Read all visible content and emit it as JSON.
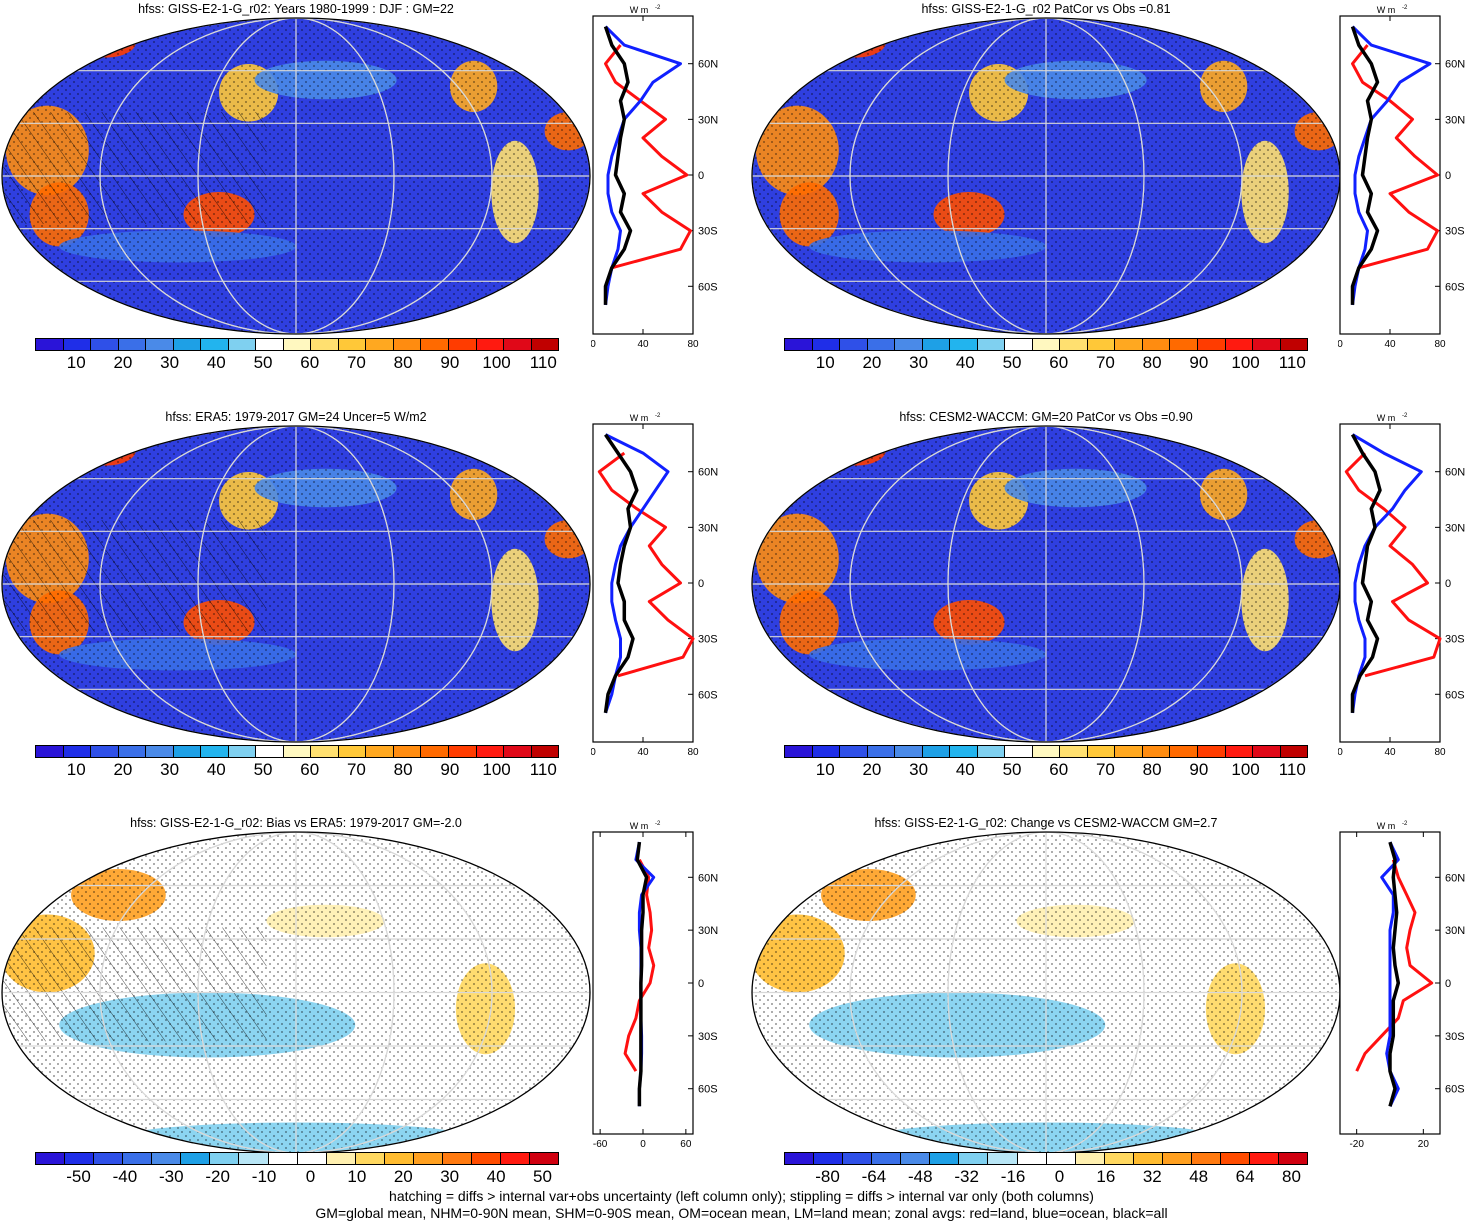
{
  "colorbars": {
    "abs": {
      "colors": [
        "#2a14d8",
        "#1f2ee8",
        "#2f50e8",
        "#3a6fe8",
        "#4a8ae8",
        "#1ea0e6",
        "#22b4ee",
        "#7fd0f0",
        "#ffffff",
        "#fff8c0",
        "#ffe070",
        "#ffc838",
        "#ffa820",
        "#ff8c10",
        "#ff6a00",
        "#ff3c00",
        "#ff1a10",
        "#e00818",
        "#c00000"
      ],
      "labels": [
        "10",
        "20",
        "30",
        "40",
        "50",
        "60",
        "70",
        "80",
        "90",
        "100",
        "110"
      ]
    },
    "bias": {
      "colors": [
        "#2a14d8",
        "#1f2ee8",
        "#2f50e8",
        "#3a6fe8",
        "#4a8ae8",
        "#1ea0e6",
        "#7fd0f0",
        "#b8e6f6",
        "#ffffff",
        "#ffffff",
        "#fff0b0",
        "#ffd860",
        "#ffbc30",
        "#ffa020",
        "#ff7a10",
        "#ff4c00",
        "#ff1a10",
        "#d00010"
      ],
      "labels": [
        "-50",
        "-40",
        "-30",
        "-20",
        "-10",
        "0",
        "10",
        "20",
        "30",
        "40",
        "50"
      ]
    },
    "change": {
      "colors": [
        "#2a14d8",
        "#1f2ee8",
        "#2f50e8",
        "#3a6fe8",
        "#4a8ae8",
        "#1ea0e6",
        "#7fd0f0",
        "#b8e6f6",
        "#ffffff",
        "#ffffff",
        "#fff0b0",
        "#ffd860",
        "#ffbc30",
        "#ffa020",
        "#ff7a10",
        "#ff4c00",
        "#ff1a10",
        "#d00010"
      ],
      "labels": [
        "-80",
        "-64",
        "-48",
        "-32",
        "-16",
        "0",
        "16",
        "32",
        "48",
        "64",
        "80"
      ]
    }
  },
  "chart_data": [
    {
      "type": "heatmap",
      "title": "hfss: GISS-E2-1-G_r02: Years 1980-1999 : DJF : GM=22",
      "colorbar": "abs",
      "zonal": {
        "unit": "W m",
        "unit_sup": "-2",
        "xticks": [
          "0",
          "40",
          "80"
        ],
        "xlim": [
          0,
          80
        ],
        "ylabels": [
          "60N",
          "30N",
          "0",
          "30S",
          "60S"
        ],
        "lat": [
          80,
          70,
          60,
          50,
          40,
          30,
          20,
          10,
          0,
          -10,
          -20,
          -30,
          -40,
          -50,
          -60,
          -70
        ],
        "land": [
          null,
          22,
          10,
          18,
          38,
          58,
          40,
          55,
          75,
          40,
          55,
          78,
          70,
          15,
          null,
          null
        ],
        "ocean": [
          10,
          25,
          70,
          48,
          38,
          25,
          20,
          15,
          12,
          12,
          15,
          22,
          20,
          15,
          12,
          10
        ],
        "all": [
          10,
          15,
          25,
          28,
          22,
          25,
          22,
          20,
          18,
          25,
          22,
          30,
          25,
          15,
          10,
          10
        ]
      }
    },
    {
      "type": "heatmap",
      "title": "hfss: GISS-E2-1-G_r02 PatCor vs Obs =0.81",
      "colorbar": "abs",
      "zonal": {
        "unit": "W m",
        "unit_sup": "-2",
        "xticks": [
          "0",
          "40",
          "80"
        ],
        "xlim": [
          0,
          80
        ],
        "ylabels": [
          "60N",
          "30N",
          "0",
          "30S",
          "60S"
        ],
        "lat": [
          80,
          70,
          60,
          50,
          40,
          30,
          20,
          10,
          0,
          -10,
          -20,
          -30,
          -40,
          -50,
          -60,
          -70
        ],
        "land": [
          null,
          22,
          10,
          18,
          40,
          58,
          45,
          60,
          78,
          40,
          55,
          78,
          70,
          15,
          null,
          null
        ],
        "ocean": [
          10,
          25,
          72,
          48,
          38,
          25,
          20,
          15,
          12,
          12,
          15,
          22,
          20,
          15,
          12,
          10
        ],
        "all": [
          10,
          15,
          25,
          30,
          22,
          25,
          22,
          20,
          18,
          25,
          22,
          30,
          25,
          15,
          10,
          10
        ]
      }
    },
    {
      "type": "heatmap",
      "title": "hfss: ERA5: 1979-2017 GM=24 Uncer=5 W/m2",
      "colorbar": "abs",
      "zonal": {
        "unit": "W m",
        "unit_sup": "-2",
        "xticks": [
          "0",
          "40",
          "80"
        ],
        "xlim": [
          0,
          80
        ],
        "ylabels": [
          "60N",
          "30N",
          "0",
          "30S",
          "60S"
        ],
        "lat": [
          80,
          70,
          60,
          50,
          40,
          30,
          20,
          10,
          0,
          -10,
          -20,
          -30,
          -40,
          -50,
          -60,
          -70
        ],
        "land": [
          null,
          25,
          5,
          15,
          35,
          58,
          45,
          55,
          70,
          45,
          60,
          80,
          72,
          20,
          null,
          null
        ],
        "ocean": [
          10,
          40,
          60,
          50,
          40,
          30,
          22,
          18,
          15,
          15,
          18,
          22,
          22,
          18,
          15,
          10
        ],
        "all": [
          10,
          20,
          30,
          35,
          28,
          30,
          25,
          22,
          20,
          25,
          25,
          32,
          28,
          18,
          12,
          10
        ]
      }
    },
    {
      "type": "heatmap",
      "title": "hfss: CESM2-WACCM: GM=20 PatCor vs Obs =0.90",
      "colorbar": "abs",
      "zonal": {
        "unit": "W m",
        "unit_sup": "-2",
        "xticks": [
          "0",
          "40",
          "80"
        ],
        "xlim": [
          0,
          80
        ],
        "ylabels": [
          "60N",
          "30N",
          "0",
          "30S",
          "60S"
        ],
        "lat": [
          80,
          70,
          60,
          50,
          40,
          30,
          20,
          10,
          0,
          -10,
          -20,
          -30,
          -40,
          -50,
          -60,
          -70
        ],
        "land": [
          null,
          20,
          5,
          15,
          35,
          52,
          40,
          58,
          70,
          42,
          55,
          80,
          75,
          20,
          null,
          null
        ],
        "ocean": [
          10,
          35,
          65,
          52,
          42,
          28,
          20,
          15,
          12,
          12,
          15,
          20,
          20,
          15,
          12,
          10
        ],
        "all": [
          10,
          18,
          28,
          32,
          25,
          28,
          22,
          20,
          18,
          25,
          22,
          30,
          26,
          16,
          10,
          10
        ]
      }
    },
    {
      "type": "heatmap",
      "title": "hfss: GISS-E2-1-G_r02: Bias vs ERA5: 1979-2017 GM=-2.0",
      "colorbar": "bias",
      "zonal": {
        "unit": "W m",
        "unit_sup": "-2",
        "xticks": [
          "-60",
          "0",
          "60"
        ],
        "xlim": [
          -70,
          70
        ],
        "ylabels": [
          "60N",
          "30N",
          "0",
          "30S",
          "60S"
        ],
        "lat": [
          80,
          70,
          60,
          50,
          40,
          30,
          20,
          10,
          0,
          -10,
          -20,
          -30,
          -40,
          -50,
          -60,
          -70
        ],
        "land": [
          null,
          -5,
          8,
          5,
          10,
          12,
          8,
          15,
          10,
          -5,
          -10,
          -20,
          -25,
          -10,
          null,
          null
        ],
        "ocean": [
          -5,
          -10,
          15,
          -2,
          -5,
          -5,
          -3,
          -3,
          -3,
          -3,
          -3,
          -2,
          -2,
          -3,
          -5,
          -5
        ],
        "all": [
          -5,
          -8,
          5,
          0,
          0,
          -2,
          -2,
          -2,
          -3,
          -3,
          -3,
          -3,
          -3,
          -3,
          -5,
          -5
        ]
      }
    },
    {
      "type": "heatmap",
      "title": "hfss: GISS-E2-1-G_r02: Change vs CESM2-WACCM GM=2.7",
      "colorbar": "change",
      "zonal": {
        "unit": "W m",
        "unit_sup": "-2",
        "xticks": [
          "-20",
          "20"
        ],
        "xlim": [
          -30,
          30
        ],
        "ylabels": [
          "60N",
          "30N",
          "0",
          "30S",
          "60S"
        ],
        "lat": [
          80,
          70,
          60,
          50,
          40,
          30,
          20,
          10,
          0,
          -10,
          -20,
          -30,
          -40,
          -50,
          -60,
          -70
        ],
        "land": [
          null,
          2,
          5,
          10,
          15,
          12,
          10,
          12,
          25,
          8,
          5,
          -5,
          -15,
          -20,
          null,
          null
        ],
        "ocean": [
          0,
          5,
          -5,
          2,
          2,
          0,
          0,
          0,
          0,
          0,
          0,
          0,
          -2,
          0,
          5,
          0
        ],
        "all": [
          0,
          3,
          2,
          3,
          4,
          3,
          2,
          3,
          5,
          2,
          2,
          2,
          0,
          0,
          3,
          0
        ]
      }
    }
  ],
  "footer": {
    "line1": "hatching = diffs > internal var+obs uncertainty (left column only); stippling = diffs > internal var only (both columns)",
    "line2": "GM=global mean, NHM=0-90N mean, SHM=0-90S mean, OM=ocean mean, LM=land mean; zonal avgs: red=land, blue=ocean, black=all"
  }
}
